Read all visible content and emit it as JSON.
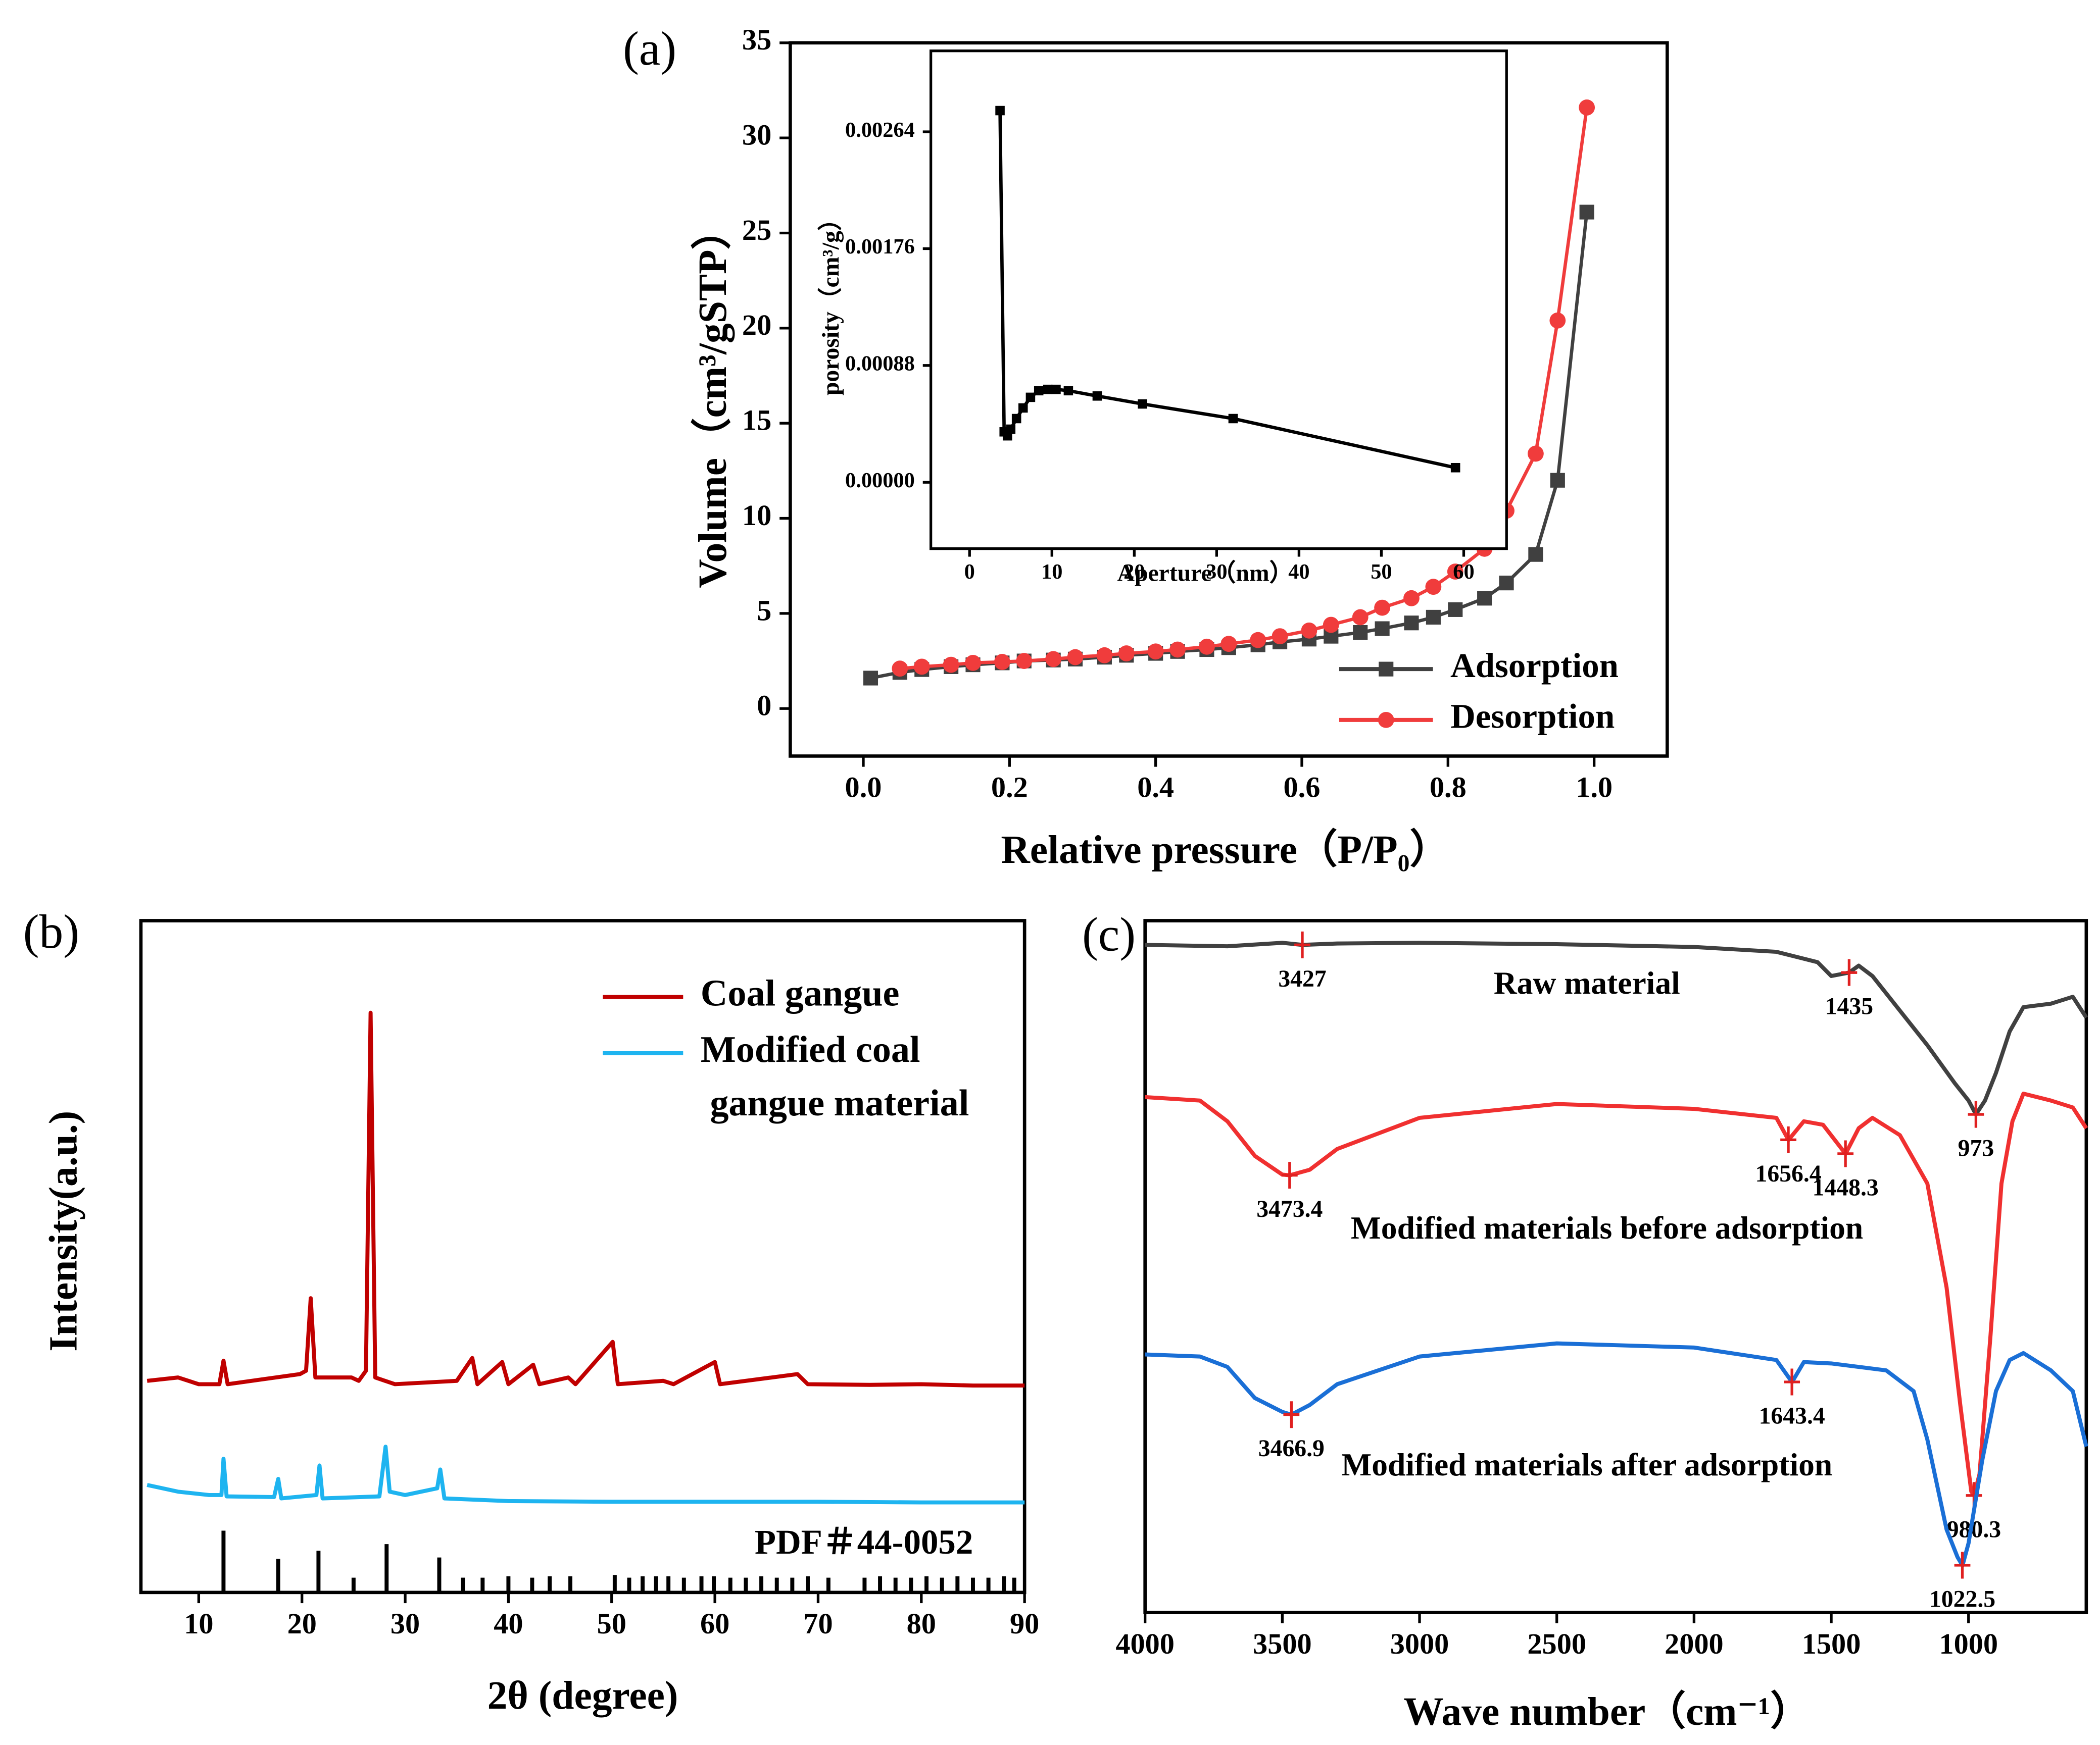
{
  "chart_data": [
    {
      "type": "line",
      "panel_label": "(a)",
      "xlabel": "Relative pressure（P/P₀）",
      "ylabel": "Volume（cm³/gSTP）",
      "xlim": [
        -0.1,
        1.1
      ],
      "ylim": [
        -2.5,
        35
      ],
      "xticks": [
        {
          "value": 0,
          "label": "0.0"
        },
        0.2,
        0.4,
        0.6,
        0.8,
        {
          "value": 1,
          "label": "1.0"
        }
      ],
      "yticks": [
        0,
        5,
        10,
        15,
        20,
        25,
        30,
        35
      ],
      "legend": "lower right",
      "series": [
        {
          "name": "Adsorption",
          "color": "#404040",
          "marker": "square",
          "x": [
            0.01,
            0.05,
            0.08,
            0.12,
            0.15,
            0.19,
            0.22,
            0.26,
            0.29,
            0.33,
            0.36,
            0.4,
            0.43,
            0.47,
            0.5,
            0.54,
            0.57,
            0.61,
            0.64,
            0.68,
            0.71,
            0.75,
            0.78,
            0.81,
            0.85,
            0.88,
            0.92,
            0.95,
            0.99
          ],
          "values": [
            1.6,
            1.9,
            2.05,
            2.2,
            2.3,
            2.4,
            2.5,
            2.55,
            2.6,
            2.7,
            2.8,
            2.9,
            3.0,
            3.1,
            3.2,
            3.35,
            3.5,
            3.65,
            3.8,
            4.0,
            4.2,
            4.5,
            4.8,
            5.2,
            5.8,
            6.6,
            8.1,
            12.0,
            26.1
          ]
        },
        {
          "name": "Desorption",
          "color": "#f03c3c",
          "marker": "circle",
          "x": [
            0.05,
            0.08,
            0.12,
            0.15,
            0.19,
            0.22,
            0.26,
            0.29,
            0.33,
            0.36,
            0.4,
            0.43,
            0.47,
            0.5,
            0.54,
            0.57,
            0.61,
            0.64,
            0.68,
            0.71,
            0.75,
            0.78,
            0.81,
            0.85,
            0.88,
            0.92,
            0.95,
            0.99
          ],
          "values": [
            2.1,
            2.2,
            2.3,
            2.4,
            2.45,
            2.5,
            2.6,
            2.7,
            2.8,
            2.9,
            3.0,
            3.1,
            3.25,
            3.4,
            3.6,
            3.8,
            4.1,
            4.4,
            4.8,
            5.3,
            5.8,
            6.4,
            7.2,
            8.4,
            10.4,
            13.4,
            20.4,
            31.6
          ]
        }
      ]
    },
    {
      "type": "line",
      "xlabel": "Aperture（nm）",
      "ylabel": "porosity（cm³/g）",
      "xlim": [
        -4.7,
        65.2
      ],
      "ylim": [
        -0.0005,
        0.00325
      ],
      "xticks": [
        0,
        10,
        20,
        30,
        40,
        50,
        60
      ],
      "yticks": [
        {
          "value": 0,
          "label": "0.00000"
        },
        {
          "value": 0.00088,
          "label": "0.00088"
        },
        {
          "value": 0.00176,
          "label": "0.00176"
        },
        {
          "value": 0.00264,
          "label": "0.00264"
        }
      ],
      "series": [
        {
          "color": "#000000",
          "marker": "square",
          "x": [
            3.7,
            4.2,
            4.6,
            5.0,
            5.7,
            6.5,
            7.4,
            8.4,
            9.5,
            10.5,
            12,
            15.5,
            21,
            32,
            59
          ],
          "values": [
            0.0028,
            0.00038,
            0.00035,
            0.0004,
            0.00048,
            0.00056,
            0.00064,
            0.00069,
            0.0007,
            0.0007,
            0.00069,
            0.00065,
            0.00059,
            0.00048,
            0.00011
          ]
        }
      ]
    },
    {
      "type": "line",
      "panel_label": "(b)",
      "xlabel": "2θ (degree)",
      "ylabel": "Intensity(a.u.)",
      "xlim": [
        4.4,
        90
      ],
      "ylim": [
        0,
        100
      ],
      "xticks": [
        10,
        20,
        30,
        40,
        50,
        60,
        70,
        80,
        90
      ],
      "legend": "upper right",
      "series": [
        {
          "name": "Coal gangue",
          "color": "#c00000",
          "x": [
            5,
            8,
            10,
            12,
            12.4,
            12.8,
            19.8,
            20.4,
            20.85,
            21.3,
            24.8,
            25.5,
            26.2,
            26.65,
            27.1,
            29,
            35,
            36.5,
            37,
            39.4,
            40,
            42.4,
            43,
            45.8,
            46.5,
            50.1,
            50.6,
            55,
            56,
            60,
            60.5,
            68,
            69,
            75,
            80,
            85,
            90
          ],
          "values": [
            31.5,
            32,
            31,
            31,
            34.5,
            31,
            32.5,
            33,
            43.8,
            32,
            32,
            31.5,
            33,
            86.3,
            32,
            31,
            31.5,
            34.9,
            31,
            34.3,
            31,
            33.9,
            31,
            32,
            31,
            37.3,
            31,
            31.5,
            31,
            34.3,
            31,
            32.5,
            31,
            30.9,
            31,
            30.8,
            30.8
          ]
        },
        {
          "name": "Modified coal gangue material",
          "color": "#1eb4f0",
          "x": [
            5,
            8,
            11,
            12.2,
            12.4,
            12.7,
            17.3,
            17.7,
            18,
            21.4,
            21.7,
            22,
            27.5,
            28.1,
            28.5,
            30,
            33.1,
            33.4,
            33.8,
            40,
            50,
            60,
            70,
            80,
            90
          ],
          "values": [
            16,
            15,
            14.5,
            14.5,
            19.9,
            14.3,
            14.2,
            16.9,
            14,
            14.5,
            18.9,
            14,
            14.3,
            21.7,
            15,
            14.5,
            15.5,
            18.3,
            14,
            13.6,
            13.5,
            13.5,
            13.5,
            13.4,
            13.4
          ]
        }
      ],
      "reference": {
        "name": "PDF＃44-0052",
        "color": "#000000",
        "x": [
          12.4,
          17.7,
          21.6,
          25,
          28.2,
          33.3,
          35.6,
          37.5,
          40,
          42.3,
          44,
          46,
          50.3,
          51.7,
          53,
          54.3,
          55.5,
          57,
          58.7,
          59.9,
          61.5,
          63,
          64.5,
          66,
          67.5,
          69,
          71,
          74.5,
          76,
          77.5,
          79,
          80.5,
          82,
          83.5,
          85,
          86.5,
          88,
          89
        ],
        "values": [
          9.2,
          5,
          6.2,
          2.2,
          7.2,
          5.2,
          2.2,
          2.2,
          2.4,
          2.2,
          2.4,
          2.4,
          2.6,
          2.2,
          2.4,
          2.4,
          2.4,
          2.2,
          2.4,
          2.4,
          2.2,
          2.2,
          2.4,
          2.2,
          2.2,
          2.4,
          2.2,
          2.2,
          2.4,
          2.2,
          2.2,
          2.4,
          2.2,
          2.4,
          2.2,
          2.2,
          2.4,
          2.2
        ]
      }
    },
    {
      "type": "line",
      "panel_label": "(c)",
      "xlabel": "Wave number（cm⁻¹）",
      "xlim": [
        4000,
        571
      ],
      "ylim": [
        0,
        100
      ],
      "xticks": [
        4000,
        3500,
        3000,
        2500,
        2000,
        1500,
        1000
      ],
      "legend": "inline",
      "series": [
        {
          "name": "Raw material",
          "color": "#404040",
          "x": [
            4000,
            3700,
            3500,
            3427,
            3300,
            3000,
            2500,
            2000,
            1700,
            1550,
            1500,
            1435,
            1400,
            1350,
            1250,
            1150,
            1050,
            1000,
            973,
            940,
            900,
            850,
            800,
            700,
            620,
            571
          ],
          "values": [
            96.5,
            96.3,
            96.8,
            96.5,
            96.7,
            96.8,
            96.6,
            96.2,
            95.5,
            94,
            92,
            92.5,
            93.5,
            92,
            87,
            82,
            76.5,
            74,
            72,
            74,
            78,
            84,
            87.5,
            88,
            89,
            86
          ],
          "peaks": [
            3427,
            1435,
            973
          ]
        },
        {
          "name": "Modified materials before adsorption",
          "color": "#f03030",
          "x": [
            4000,
            3800,
            3700,
            3600,
            3500,
            3473,
            3400,
            3300,
            3000,
            2500,
            2000,
            1700,
            1656,
            1600,
            1530,
            1448,
            1400,
            1350,
            1250,
            1150,
            1080,
            1030,
            990,
            980,
            960,
            920,
            880,
            840,
            800,
            700,
            620,
            571
          ],
          "values": [
            74.5,
            74,
            71,
            66,
            63.3,
            63.2,
            64,
            67,
            71.5,
            73.5,
            72.8,
            71.5,
            68.3,
            71,
            70.5,
            66.3,
            70,
            71.5,
            69,
            62,
            47,
            30,
            17.5,
            16.9,
            20,
            40,
            62,
            71,
            75,
            74,
            73,
            70
          ],
          "peaks": [
            3473.4,
            1656.4,
            1448.3,
            980.3
          ]
        },
        {
          "name": "Modified materials after adsorption",
          "color": "#1a6fd6",
          "x": [
            4000,
            3800,
            3700,
            3600,
            3500,
            3467,
            3400,
            3300,
            3000,
            2500,
            2000,
            1700,
            1643,
            1600,
            1500,
            1300,
            1200,
            1150,
            1080,
            1040,
            1022,
            1000,
            950,
            900,
            850,
            800,
            700,
            620,
            571
          ],
          "values": [
            37.3,
            37,
            35.5,
            31,
            29,
            28.6,
            30,
            33,
            37,
            38.9,
            38.3,
            36.5,
            33.3,
            36.2,
            36,
            35,
            32,
            25,
            12,
            8,
            6.8,
            10,
            22,
            32,
            36.5,
            37.5,
            35,
            32,
            24
          ],
          "peaks": [
            3466.9,
            1643.4,
            1022.5
          ]
        }
      ]
    }
  ]
}
